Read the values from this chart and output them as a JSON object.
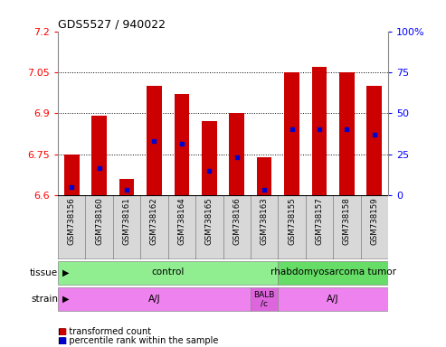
{
  "title": "GDS5527 / 940022",
  "samples": [
    "GSM738156",
    "GSM738160",
    "GSM738161",
    "GSM738162",
    "GSM738164",
    "GSM738165",
    "GSM738166",
    "GSM738163",
    "GSM738155",
    "GSM738157",
    "GSM738158",
    "GSM738159"
  ],
  "bar_tops": [
    6.75,
    6.89,
    6.66,
    7.0,
    6.97,
    6.87,
    6.9,
    6.74,
    7.05,
    7.07,
    7.05,
    7.0
  ],
  "blue_pos": [
    6.63,
    6.7,
    6.62,
    6.8,
    6.79,
    6.69,
    6.74,
    6.62,
    6.84,
    6.84,
    6.84,
    6.82
  ],
  "ymin": 6.6,
  "ymax": 7.2,
  "yticks": [
    6.6,
    6.75,
    6.9,
    7.05,
    7.2
  ],
  "ytick_labels": [
    "6.6",
    "6.75",
    "6.9",
    "7.05",
    "7.2"
  ],
  "right_yticks": [
    0,
    25,
    50,
    75,
    100
  ],
  "right_ytick_labels": [
    "0",
    "25",
    "50",
    "75",
    "100%"
  ],
  "bar_color": "#cc0000",
  "blue_color": "#0000cc",
  "bar_width": 0.55,
  "tissue_info": [
    {
      "start": 0,
      "end": 7,
      "text": "control",
      "color": "#90ee90"
    },
    {
      "start": 8,
      "end": 11,
      "text": "rhabdomyosarcoma tumor",
      "color": "#66dd66"
    }
  ],
  "strain_info": [
    {
      "start": 0,
      "end": 6,
      "text": "A/J",
      "color": "#ee82ee"
    },
    {
      "start": 7,
      "end": 7,
      "text": "BALB\n/c",
      "color": "#dd66dd"
    },
    {
      "start": 8,
      "end": 11,
      "text": "A/J",
      "color": "#ee82ee"
    }
  ],
  "tissue_text": "tissue",
  "strain_text": "strain",
  "legend_items": [
    {
      "label": "transformed count",
      "color": "#cc0000"
    },
    {
      "label": "percentile rank within the sample",
      "color": "#0000cc"
    }
  ],
  "sample_bg": "#d8d8d8",
  "dotted_lines": [
    6.75,
    6.9,
    7.05
  ],
  "border_color": "#888888"
}
